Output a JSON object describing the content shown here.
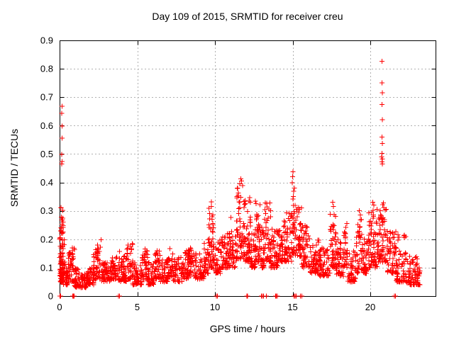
{
  "figure": {
    "background": "#ffffff"
  },
  "chart_data": {
    "type": "scatter",
    "title": "Day 109 of 2015, SRMTID for receiver creu",
    "xlabel": "GPS time / hours",
    "ylabel": "SRMTID / TECUs",
    "series_name": "SRMTID",
    "xlim": [
      0,
      24.2
    ],
    "ylim": [
      0,
      0.9
    ],
    "xticks": [
      0,
      5,
      10,
      15,
      20
    ],
    "yticks": [
      0,
      0.1,
      0.2,
      0.3,
      0.4,
      0.5,
      0.6,
      0.7,
      0.8,
      0.9
    ],
    "grid": true,
    "grid_style": "dashed",
    "legend": "none",
    "marker": "plus",
    "marker_color": "#ff0000",
    "axis_color": "#000000",
    "grid_color": "#b0b0b0",
    "seed": 109,
    "outliers": [
      [
        0.15,
        0.668
      ],
      [
        0.14,
        0.643
      ],
      [
        0.16,
        0.598
      ],
      [
        0.15,
        0.556
      ],
      [
        0.13,
        0.499
      ],
      [
        0.16,
        0.474
      ],
      [
        0.14,
        0.465
      ],
      [
        9.78,
        0.332
      ],
      [
        9.76,
        0.315
      ],
      [
        11.66,
        0.412
      ],
      [
        11.72,
        0.405
      ],
      [
        15.02,
        0.437
      ],
      [
        15.01,
        0.42
      ],
      [
        17.58,
        0.33
      ],
      [
        17.62,
        0.315
      ],
      [
        19.3,
        0.3
      ],
      [
        19.36,
        0.285
      ],
      [
        20.15,
        0.33
      ],
      [
        20.22,
        0.32
      ],
      [
        20.75,
        0.826
      ],
      [
        20.76,
        0.75
      ],
      [
        20.77,
        0.716
      ],
      [
        20.76,
        0.675
      ],
      [
        20.77,
        0.621
      ],
      [
        20.76,
        0.56
      ],
      [
        20.78,
        0.537
      ],
      [
        20.76,
        0.502
      ],
      [
        20.74,
        0.49
      ],
      [
        20.77,
        0.483
      ],
      [
        20.75,
        0.473
      ],
      [
        20.78,
        0.465
      ]
    ],
    "zero_time_points": [
      0.02,
      0.06,
      0.85,
      0.88,
      0.91,
      0.94,
      3.8,
      3.86,
      10.1,
      10.16,
      12.05,
      12.1,
      13.0,
      13.06,
      13.12,
      13.3,
      13.9,
      13.96,
      14.02,
      15.1,
      15.16,
      15.22,
      15.5,
      15.6,
      21.55,
      21.62
    ],
    "density_bands": [
      [
        0.0,
        0.25,
        0.05,
        0.33,
        60
      ],
      [
        0.03,
        0.3,
        0.07,
        0.23,
        40
      ],
      [
        0.25,
        0.55,
        0.04,
        0.12,
        30
      ],
      [
        0.55,
        0.95,
        0.05,
        0.17,
        45
      ],
      [
        0.95,
        1.3,
        0.03,
        0.1,
        35
      ],
      [
        1.3,
        1.8,
        0.03,
        0.08,
        45
      ],
      [
        1.8,
        2.2,
        0.04,
        0.11,
        40
      ],
      [
        2.2,
        2.7,
        0.06,
        0.2,
        50
      ],
      [
        2.7,
        3.3,
        0.05,
        0.12,
        55
      ],
      [
        3.3,
        3.7,
        0.06,
        0.14,
        40
      ],
      [
        3.7,
        4.3,
        0.05,
        0.16,
        55
      ],
      [
        4.3,
        4.7,
        0.06,
        0.19,
        40
      ],
      [
        4.7,
        5.3,
        0.04,
        0.12,
        50
      ],
      [
        5.3,
        5.7,
        0.06,
        0.17,
        40
      ],
      [
        5.7,
        6.1,
        0.04,
        0.12,
        40
      ],
      [
        6.1,
        6.5,
        0.06,
        0.16,
        40
      ],
      [
        6.5,
        7.0,
        0.05,
        0.13,
        45
      ],
      [
        7.0,
        7.3,
        0.07,
        0.18,
        30
      ],
      [
        7.3,
        7.9,
        0.05,
        0.14,
        50
      ],
      [
        7.9,
        8.3,
        0.06,
        0.16,
        40
      ],
      [
        8.3,
        8.7,
        0.07,
        0.18,
        40
      ],
      [
        8.7,
        9.3,
        0.06,
        0.15,
        50
      ],
      [
        9.3,
        9.6,
        0.08,
        0.2,
        30
      ],
      [
        9.6,
        9.9,
        0.1,
        0.31,
        45
      ],
      [
        9.9,
        10.4,
        0.08,
        0.2,
        45
      ],
      [
        10.4,
        10.9,
        0.1,
        0.22,
        50
      ],
      [
        10.9,
        11.4,
        0.1,
        0.28,
        50
      ],
      [
        11.4,
        11.9,
        0.13,
        0.4,
        65
      ],
      [
        11.9,
        12.3,
        0.12,
        0.35,
        50
      ],
      [
        12.3,
        12.6,
        0.1,
        0.22,
        35
      ],
      [
        12.6,
        12.9,
        0.12,
        0.34,
        40
      ],
      [
        12.9,
        13.2,
        0.1,
        0.25,
        35
      ],
      [
        13.2,
        13.6,
        0.12,
        0.33,
        45
      ],
      [
        13.6,
        14.1,
        0.1,
        0.25,
        50
      ],
      [
        14.1,
        14.6,
        0.12,
        0.27,
        50
      ],
      [
        14.6,
        14.95,
        0.12,
        0.3,
        35
      ],
      [
        14.95,
        15.15,
        0.15,
        0.4,
        30
      ],
      [
        15.15,
        15.6,
        0.14,
        0.32,
        50
      ],
      [
        15.6,
        16.1,
        0.1,
        0.25,
        50
      ],
      [
        16.1,
        16.7,
        0.08,
        0.2,
        55
      ],
      [
        16.7,
        17.4,
        0.07,
        0.17,
        60
      ],
      [
        17.4,
        17.8,
        0.1,
        0.3,
        45
      ],
      [
        17.8,
        18.3,
        0.07,
        0.2,
        45
      ],
      [
        18.3,
        18.55,
        0.1,
        0.27,
        25
      ],
      [
        18.55,
        19.1,
        0.05,
        0.16,
        45
      ],
      [
        19.1,
        19.5,
        0.08,
        0.27,
        40
      ],
      [
        19.5,
        19.9,
        0.08,
        0.22,
        40
      ],
      [
        19.9,
        20.45,
        0.1,
        0.31,
        60
      ],
      [
        20.45,
        21.1,
        0.12,
        0.33,
        70
      ],
      [
        21.1,
        21.65,
        0.08,
        0.25,
        50
      ],
      [
        21.65,
        22.3,
        0.05,
        0.22,
        55
      ],
      [
        22.3,
        23.2,
        0.04,
        0.14,
        80
      ]
    ]
  }
}
